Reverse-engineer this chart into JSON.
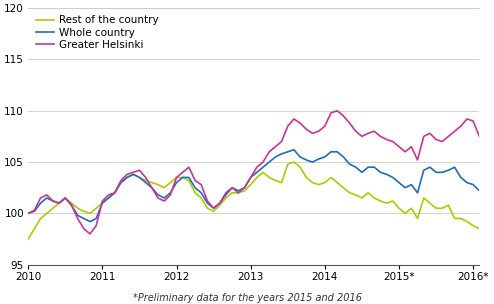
{
  "xlabel": "*Preliminary data for the years 2015 and 2016",
  "ylim": [
    95,
    120
  ],
  "yticks": [
    95,
    100,
    105,
    110,
    115,
    120
  ],
  "xlim": [
    0,
    73
  ],
  "xtick_positions": [
    0,
    12,
    24,
    36,
    48,
    60,
    72
  ],
  "xtick_labels": [
    "2010",
    "2011",
    "2012",
    "2013",
    "2014",
    "2015*",
    "2016*"
  ],
  "legend_labels": [
    "Greater Helsinki",
    "Whole country",
    "Rest of the country"
  ],
  "colors": [
    "#cc3399",
    "#1f6eb5",
    "#aacc00"
  ],
  "linewidth": 1.2,
  "grid_color": "#cccccc",
  "helsinki": [
    100.0,
    100.3,
    101.5,
    101.8,
    101.2,
    101.0,
    101.5,
    100.8,
    99.5,
    98.5,
    98.0,
    98.8,
    101.2,
    101.8,
    102.0,
    103.2,
    103.8,
    104.0,
    104.2,
    103.5,
    102.5,
    101.5,
    101.2,
    101.8,
    103.5,
    104.0,
    104.5,
    103.2,
    102.8,
    101.2,
    100.5,
    101.0,
    101.8,
    102.5,
    102.0,
    102.5,
    103.5,
    104.5,
    105.0,
    106.0,
    106.5,
    107.0,
    108.5,
    109.2,
    108.8,
    108.2,
    107.8,
    108.0,
    108.5,
    109.8,
    110.0,
    109.5,
    108.8,
    108.0,
    107.5,
    107.8,
    108.0,
    107.5,
    107.2,
    107.0,
    106.5,
    106.0,
    106.5,
    105.2,
    107.5,
    107.8,
    107.2,
    107.0,
    107.5,
    108.0,
    108.5,
    109.2,
    109.0,
    107.5
  ],
  "whole_country": [
    100.0,
    100.2,
    101.0,
    101.5,
    101.2,
    101.0,
    101.5,
    100.8,
    99.8,
    99.5,
    99.2,
    99.5,
    101.0,
    101.5,
    102.0,
    103.0,
    103.5,
    103.8,
    103.5,
    103.0,
    102.5,
    101.8,
    101.5,
    102.0,
    103.0,
    103.5,
    103.5,
    102.5,
    102.0,
    101.0,
    100.5,
    101.0,
    102.0,
    102.5,
    102.2,
    102.5,
    103.5,
    104.0,
    104.5,
    105.0,
    105.5,
    105.8,
    106.0,
    106.2,
    105.5,
    105.2,
    105.0,
    105.3,
    105.5,
    106.0,
    106.0,
    105.5,
    104.8,
    104.5,
    104.0,
    104.5,
    104.5,
    104.0,
    103.8,
    103.5,
    103.0,
    102.5,
    102.8,
    102.0,
    104.2,
    104.5,
    104.0,
    104.0,
    104.2,
    104.5,
    103.5,
    103.0,
    102.8,
    102.2
  ],
  "rest_of_country": [
    97.5,
    98.5,
    99.5,
    100.0,
    100.5,
    101.0,
    101.5,
    101.0,
    100.5,
    100.2,
    100.0,
    100.5,
    101.0,
    101.5,
    102.0,
    103.0,
    103.5,
    103.8,
    103.5,
    103.2,
    103.0,
    102.8,
    102.5,
    103.0,
    103.5,
    103.5,
    103.2,
    102.0,
    101.5,
    100.5,
    100.2,
    100.8,
    101.5,
    102.0,
    102.0,
    102.2,
    102.8,
    103.5,
    104.0,
    103.5,
    103.2,
    103.0,
    104.8,
    105.0,
    104.5,
    103.5,
    103.0,
    102.8,
    103.0,
    103.5,
    103.0,
    102.5,
    102.0,
    101.8,
    101.5,
    102.0,
    101.5,
    101.2,
    101.0,
    101.2,
    100.5,
    100.0,
    100.5,
    99.5,
    101.5,
    101.0,
    100.5,
    100.5,
    100.8,
    99.5,
    99.5,
    99.2,
    98.8,
    98.5
  ]
}
